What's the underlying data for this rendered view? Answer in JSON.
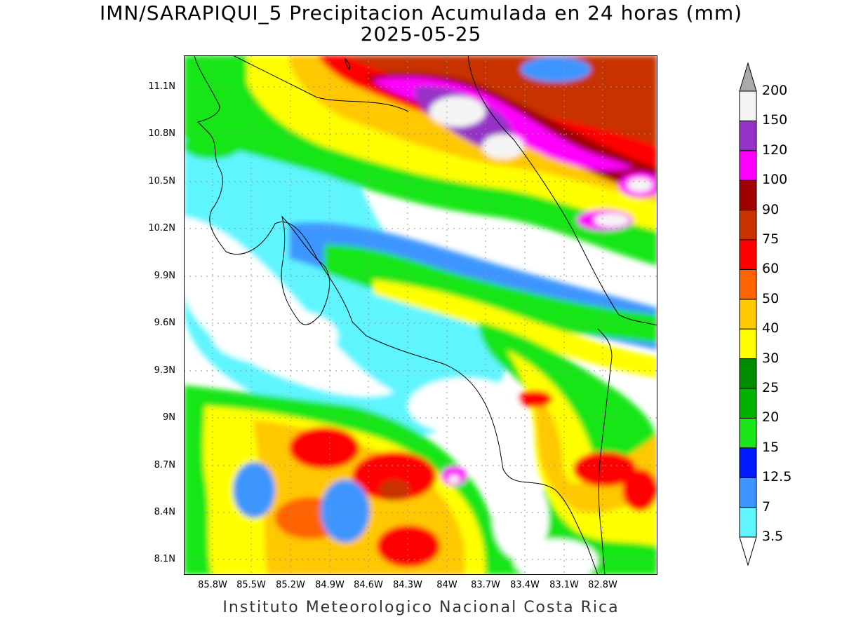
{
  "title": {
    "line1": "IMN/SARAPIQUI_5 Precipitacion Acumulada en 24 horas (mm)",
    "line2": "2025-05-25"
  },
  "footer": "Instituto Meteorologico Nacional Costa Rica",
  "axes": {
    "lat_labels": [
      "11.1N",
      "10.8N",
      "10.5N",
      "10.2N",
      "9.9N",
      "9.6N",
      "9.3N",
      "9N",
      "8.7N",
      "8.4N",
      "8.1N"
    ],
    "lon_labels": [
      "85.8W",
      "85.5W",
      "85.2W",
      "84.9W",
      "84.6W",
      "84.3W",
      "84W",
      "83.7W",
      "83.4W",
      "83.1W",
      "82.8W"
    ],
    "grid": "dotted"
  },
  "legend": {
    "levels": [
      "3.5",
      "7",
      "12.5",
      "15",
      "20",
      "25",
      "30",
      "40",
      "50",
      "60",
      "75",
      "90",
      "100",
      "120",
      "150",
      "200"
    ],
    "colors": [
      "#ffffff",
      "#5ff5ff",
      "#3c96ff",
      "#0019ff",
      "#19e619",
      "#00b300",
      "#008c00",
      "#ffff00",
      "#ffc800",
      "#ff6400",
      "#ff0000",
      "#c83200",
      "#a00000",
      "#ff00ff",
      "#9632c8",
      "#f5f5f5",
      "#aaaaaa"
    ]
  }
}
